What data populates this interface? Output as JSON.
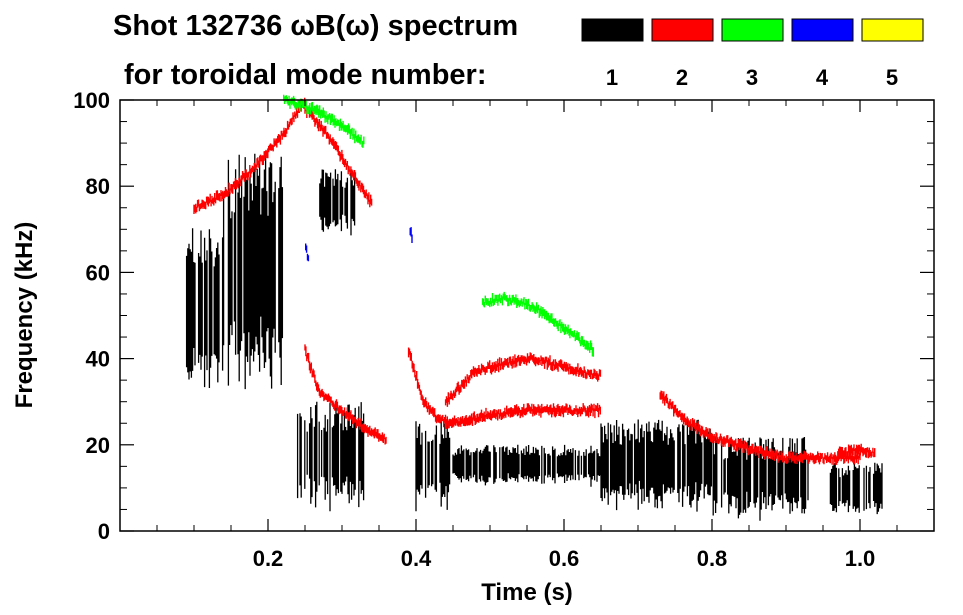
{
  "chart_data": {
    "type": "heatmap",
    "title_line1": "Shot 132736 ωB(ω) spectrum",
    "title_line2": "for toroidal mode number:",
    "xlabel": "Time (s)",
    "ylabel": "Frequency (kHz)",
    "xlim": [
      0.0,
      1.1
    ],
    "ylim": [
      0,
      100
    ],
    "x_ticks": [
      {
        "value": 0.2,
        "label": "0.2"
      },
      {
        "value": 0.4,
        "label": "0.4"
      },
      {
        "value": 0.6,
        "label": "0.6"
      },
      {
        "value": 0.8,
        "label": "0.8"
      },
      {
        "value": 1.0,
        "label": "1.0"
      }
    ],
    "y_ticks": [
      {
        "value": 0,
        "label": "0"
      },
      {
        "value": 20,
        "label": "20"
      },
      {
        "value": 40,
        "label": "40"
      },
      {
        "value": 60,
        "label": "60"
      },
      {
        "value": 80,
        "label": "80"
      },
      {
        "value": 100,
        "label": "100"
      }
    ],
    "legend": {
      "placement": "top-right",
      "entries": [
        {
          "label": "1",
          "color": "#000000"
        },
        {
          "label": "2",
          "color": "#ff0000"
        },
        {
          "label": "3",
          "color": "#00ff00"
        },
        {
          "label": "4",
          "color": "#0000ff"
        },
        {
          "label": "5",
          "color": "#ffff00"
        }
      ]
    },
    "series": [
      {
        "name": "n=1",
        "mode": 1,
        "color": "#000000",
        "regions": [
          {
            "t": [
              0.09,
              0.14
            ],
            "f": [
              28,
              72
            ]
          },
          {
            "t": [
              0.14,
              0.22
            ],
            "f": [
              30,
              88
            ]
          },
          {
            "t": [
              0.27,
              0.32
            ],
            "f": [
              68,
              84
            ]
          },
          {
            "t": [
              0.24,
              0.33
            ],
            "f": [
              4,
              30
            ]
          },
          {
            "t": [
              0.4,
              0.45
            ],
            "f": [
              4,
              26
            ]
          },
          {
            "t": [
              0.45,
              0.65
            ],
            "f": [
              10,
              20
            ]
          },
          {
            "t": [
              0.65,
              0.8
            ],
            "f": [
              4,
              26
            ]
          },
          {
            "t": [
              0.8,
              0.93
            ],
            "f": [
              2,
              22
            ]
          },
          {
            "t": [
              0.96,
              1.03
            ],
            "f": [
              3,
              16
            ]
          }
        ]
      },
      {
        "name": "n=2",
        "mode": 2,
        "color": "#ff0000",
        "curves": [
          {
            "t": [
              0.1,
              0.14,
              0.18,
              0.22,
              0.25
            ],
            "f": [
              75,
              78,
              84,
              92,
              100
            ]
          },
          {
            "t": [
              0.25,
              0.28,
              0.31,
              0.34
            ],
            "f": [
              98,
              92,
              84,
              76
            ]
          },
          {
            "t": [
              0.25,
              0.27,
              0.3,
              0.33,
              0.36
            ],
            "f": [
              42,
              32,
              28,
              24,
              21
            ]
          },
          {
            "t": [
              0.39,
              0.41,
              0.43,
              0.45,
              0.5,
              0.55,
              0.65
            ],
            "f": [
              42,
              30,
              26,
              25,
              27,
              28,
              28
            ]
          },
          {
            "t": [
              0.44,
              0.48,
              0.52,
              0.56,
              0.6,
              0.65
            ],
            "f": [
              30,
              37,
              39,
              40,
              38,
              36
            ]
          },
          {
            "t": [
              0.73,
              0.76,
              0.8,
              0.85,
              0.9,
              1.0
            ],
            "f": [
              32,
              26,
              22,
              19,
              17,
              17
            ]
          },
          {
            "t": [
              0.97,
              1.0,
              1.02
            ],
            "f": [
              18,
              19,
              18
            ]
          }
        ]
      },
      {
        "name": "n=3",
        "mode": 3,
        "color": "#00ff00",
        "curves": [
          {
            "t": [
              0.22,
              0.26,
              0.3,
              0.33
            ],
            "f": [
              100,
              98,
              94,
              90
            ]
          },
          {
            "t": [
              0.49,
              0.52,
              0.56,
              0.6,
              0.64
            ],
            "f": [
              53,
              54,
              52,
              47,
              42
            ]
          }
        ]
      },
      {
        "name": "n=4",
        "mode": 4,
        "color": "#0000ff",
        "curves": [
          {
            "t": [
              0.251,
              0.255
            ],
            "f": [
              66,
              63
            ]
          },
          {
            "t": [
              0.391,
              0.395
            ],
            "f": [
              71,
              68
            ]
          }
        ]
      },
      {
        "name": "n=5",
        "mode": 5,
        "color": "#ffff00",
        "curves": []
      }
    ]
  }
}
